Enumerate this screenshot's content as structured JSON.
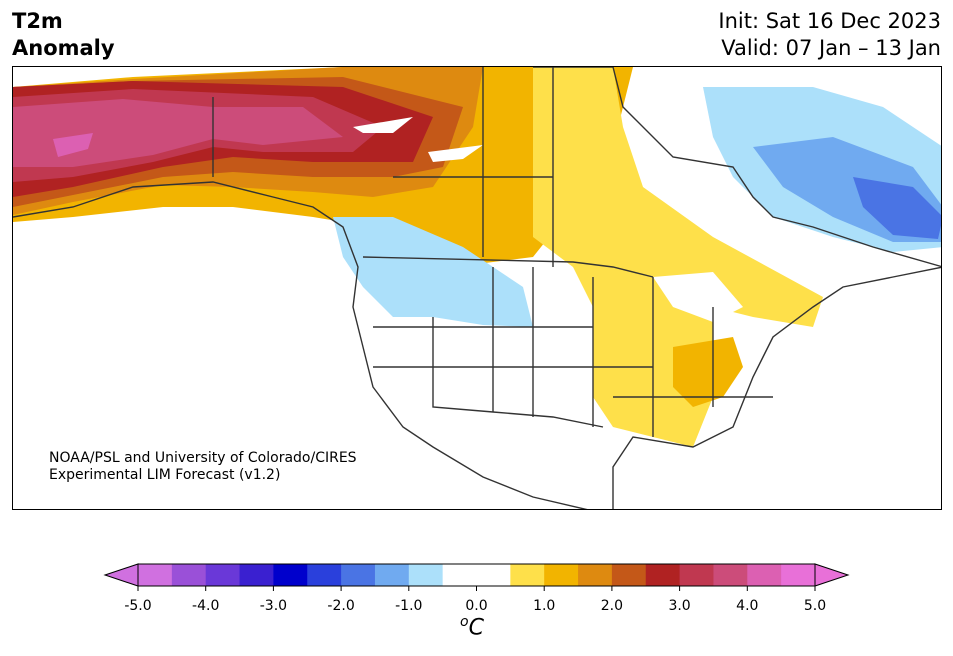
{
  "header": {
    "title_line1": "T2m",
    "title_line2": "Anomaly",
    "init": "Init: Sat 16 Dec 2023",
    "valid": "Valid: 07 Jan – 13 Jan"
  },
  "credit": {
    "line1": "NOAA/PSL and University of Colorado/CIRES",
    "line2": "Experimental LIM Forecast (v1.2)"
  },
  "colorbar": {
    "unit_base": "C",
    "unit_sup": "o",
    "ticks": [
      "-5.0",
      "-4.0",
      "-3.0",
      "-2.0",
      "-1.0",
      "0.0",
      "1.0",
      "2.0",
      "3.0",
      "4.0",
      "5.0"
    ],
    "colors": [
      "#d070e0",
      "#9a50d8",
      "#6a38d8",
      "#3a20d0",
      "#0000cc",
      "#2a40dc",
      "#4a74e4",
      "#70aaf0",
      "#ace0fa",
      "#ffffff",
      "#ffffff",
      "#fee04a",
      "#f2b400",
      "#de8a10",
      "#c45818",
      "#b02222",
      "#c03850",
      "#cc4c7a",
      "#dc60b2",
      "#e870d8"
    ],
    "under_color": "#d070e0",
    "over_color": "#e870d8"
  },
  "map": {
    "region": "North America",
    "colors": {
      "land_neutral": "#ffffff",
      "ocean": "#ffffff",
      "pos_05": "#fee04a",
      "pos_10": "#f2b400",
      "pos_15": "#de8a10",
      "pos_20": "#c45818",
      "pos_25": "#b02222",
      "pos_30": "#c03850",
      "pos_35": "#cc4c7a",
      "pos_40": "#dc60b2",
      "neg_05": "#ace0fa",
      "neg_10": "#70aaf0",
      "neg_15": "#4a74e4",
      "border": "#333333"
    }
  }
}
